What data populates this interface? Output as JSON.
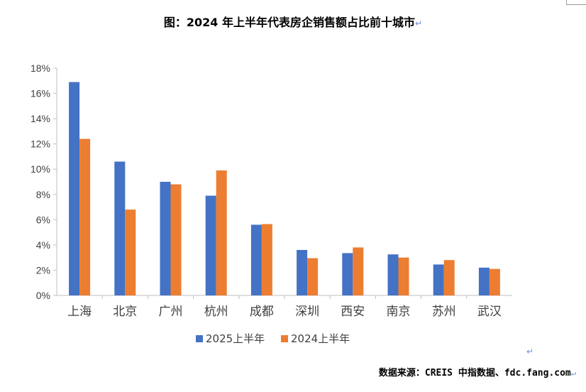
{
  "chart_data": {
    "type": "bar",
    "title": "图：2024 年上半年代表房企销售额占比前十城市",
    "categories": [
      "上海",
      "北京",
      "广州",
      "杭州",
      "成都",
      "深圳",
      "西安",
      "南京",
      "苏州",
      "武汉"
    ],
    "series": [
      {
        "name": "2025上半年",
        "values": [
          16.9,
          10.6,
          9.0,
          7.9,
          5.6,
          3.6,
          3.35,
          3.25,
          2.45,
          2.2
        ],
        "color": "#4472c4"
      },
      {
        "name": "2024上半年",
        "values": [
          12.4,
          6.8,
          8.8,
          9.9,
          5.65,
          2.95,
          3.8,
          3.0,
          2.8,
          2.1
        ],
        "color": "#ed7d31"
      }
    ],
    "yticks": [
      "0%",
      "2%",
      "4%",
      "6%",
      "8%",
      "10%",
      "12%",
      "14%",
      "16%",
      "18%"
    ],
    "ylim": [
      0,
      18
    ],
    "grid": false,
    "legend": "bottom"
  },
  "source": "数据来源：CREIS 中指数据、fdc.fang.com",
  "return_mark": "↵"
}
